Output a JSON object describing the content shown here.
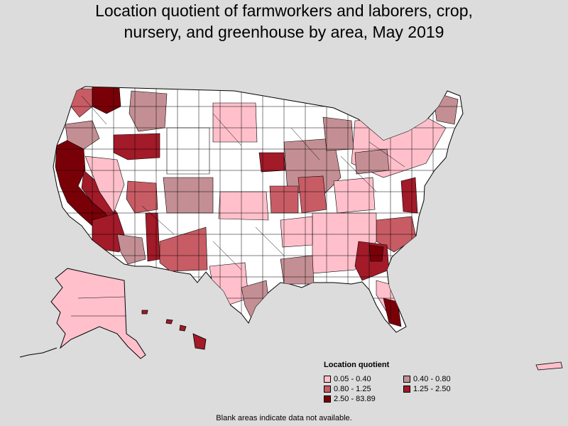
{
  "title": {
    "line1": "Location quotient of farmworkers and laborers, crop,",
    "line2": "nursery, and greenhouse by area, May 2019"
  },
  "legend": {
    "title": "Location quotient",
    "items": [
      {
        "label": "0.05 - 0.40",
        "color": "#ffc0cb"
      },
      {
        "label": "0.40 - 0.80",
        "color": "#c48f94"
      },
      {
        "label": "0.80 - 1.25",
        "color": "#c85c64"
      },
      {
        "label": "1.25 - 2.50",
        "color": "#a31a28"
      },
      {
        "label": "2.50 - 83.89",
        "color": "#7a0008"
      }
    ]
  },
  "colors": {
    "no_data": "#ffffff",
    "background": "#dcdcdc",
    "border": "#000000"
  },
  "footnote": "Blank areas indicate data not available."
}
